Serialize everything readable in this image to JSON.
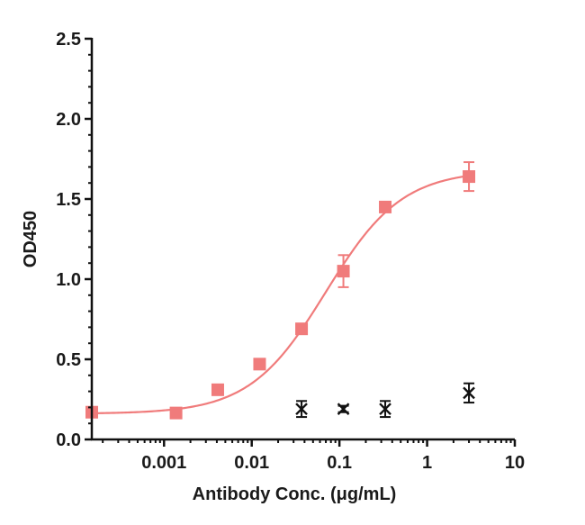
{
  "chart_data": {
    "type": "scatter",
    "xlabel": "Antibody Conc. (μg/mL)",
    "ylabel": "OD450",
    "x_scale": "log",
    "xlim": [
      0.00015,
      10
    ],
    "ylim": [
      0,
      2.5
    ],
    "x_ticks": [
      {
        "value": 0.001,
        "label": "0.001"
      },
      {
        "value": 0.01,
        "label": "0.01"
      },
      {
        "value": 0.1,
        "label": "0.1"
      },
      {
        "value": 1,
        "label": "1"
      },
      {
        "value": 10,
        "label": "10"
      }
    ],
    "y_ticks": [
      {
        "value": 0.0,
        "label": "0.0"
      },
      {
        "value": 0.5,
        "label": "0.5"
      },
      {
        "value": 1.0,
        "label": "1.0"
      },
      {
        "value": 1.5,
        "label": "1.5"
      },
      {
        "value": 2.0,
        "label": "2.0"
      },
      {
        "value": 2.5,
        "label": "2.5"
      }
    ],
    "grid": false,
    "legend": "none",
    "series": [
      {
        "marker": "square",
        "color": "#f07b7b",
        "points": [
          {
            "x": 0.00015,
            "y": 0.17,
            "err": 0
          },
          {
            "x": 0.00137,
            "y": 0.165,
            "err": 0
          },
          {
            "x": 0.0041,
            "y": 0.31,
            "err": 0
          },
          {
            "x": 0.0123,
            "y": 0.47,
            "err": 0
          },
          {
            "x": 0.037,
            "y": 0.69,
            "err": 0.03
          },
          {
            "x": 0.111,
            "y": 1.05,
            "err": 0.1
          },
          {
            "x": 0.333,
            "y": 1.45,
            "err": 0
          },
          {
            "x": 3.0,
            "y": 1.64,
            "err": 0.09
          }
        ],
        "fit_curve": {
          "model": "4PL",
          "bottom": 0.16,
          "top": 1.68,
          "ec50": 0.07,
          "hill": 1.0
        }
      },
      {
        "marker": "x",
        "color": "#111111",
        "points": [
          {
            "x": 0.037,
            "y": 0.19,
            "err": 0.05
          },
          {
            "x": 0.111,
            "y": 0.19,
            "err": 0.02
          },
          {
            "x": 0.333,
            "y": 0.19,
            "err": 0.05
          },
          {
            "x": 3.0,
            "y": 0.29,
            "err": 0.06
          }
        ]
      }
    ]
  }
}
